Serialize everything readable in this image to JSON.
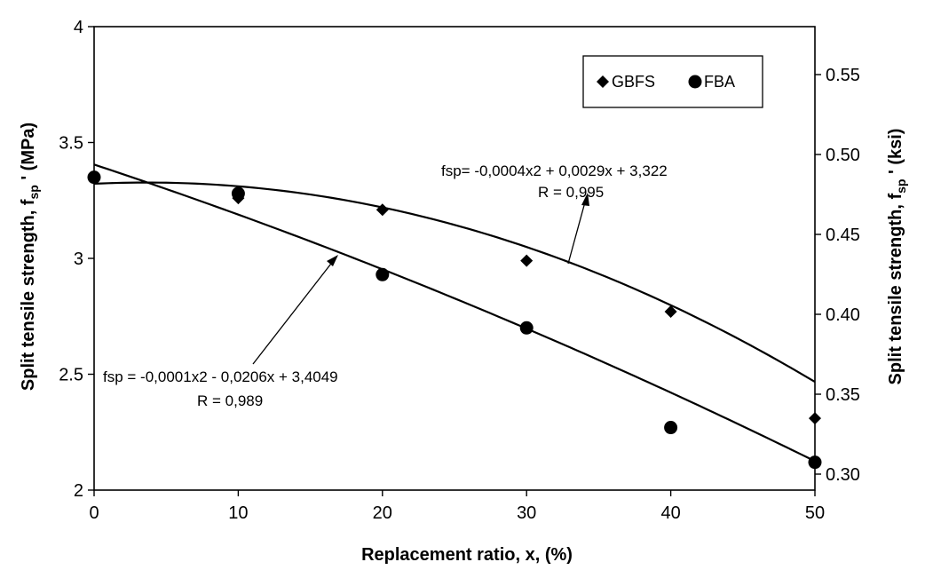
{
  "chart_data": {
    "type": "scatter",
    "xlabel": "Replacement ratio, x, (%)",
    "ylabel": {
      "main": "Split tensile strength, f",
      "sub": "sp",
      "unit": " ' (MPa)"
    },
    "y2label": {
      "main": "Split tensile strength, f",
      "sub": "sp",
      "unit": " ' (ksi)"
    },
    "xlim": [
      0,
      50
    ],
    "ylim": [
      2,
      4
    ],
    "y2lim": [
      0.29,
      0.58
    ],
    "x_ticks": [
      "0",
      "10",
      "20",
      "30",
      "40",
      "50"
    ],
    "y_ticks": [
      "2",
      "2.5",
      "3",
      "3.5",
      "4"
    ],
    "y2_ticks": [
      "0.30",
      "0.35",
      "0.40",
      "0.45",
      "0.50",
      "0.55"
    ],
    "grid": false,
    "legend_position": "top-right",
    "legend": [
      "GBFS",
      "FBA"
    ],
    "series": [
      {
        "name": "GBFS",
        "marker": "diamond",
        "x": [
          0,
          10,
          20,
          30,
          40,
          50
        ],
        "y": [
          3.35,
          3.26,
          3.21,
          2.99,
          2.77,
          2.31
        ],
        "fit": [
          -0.0004,
          0.0029,
          3.322
        ]
      },
      {
        "name": "FBA",
        "marker": "circle",
        "x": [
          0,
          10,
          20,
          30,
          40,
          50
        ],
        "y": [
          3.35,
          3.28,
          2.93,
          2.7,
          2.27,
          2.12
        ],
        "fit": [
          -0.0001,
          -0.0206,
          3.4049
        ]
      }
    ],
    "annotations": [
      {
        "line1": "fsp= -0,0004x2 + 0,0029x + 3,322",
        "line2": "R = 0,995"
      },
      {
        "line1": "fsp = -0,0001x2 - 0,0206x + 3,4049",
        "line2": "R = 0,989"
      }
    ]
  }
}
